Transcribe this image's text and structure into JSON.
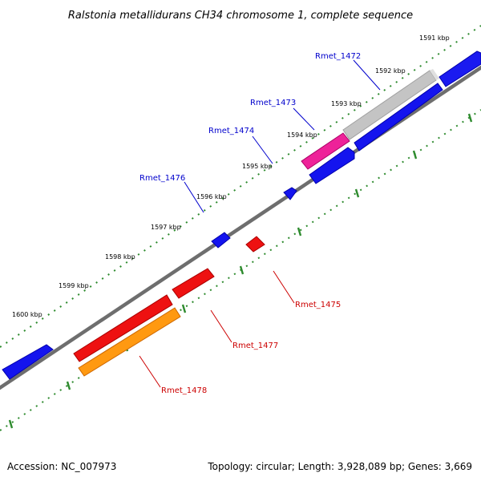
{
  "title": "Ralstonia metallidurans CH34 chromosome 1, complete sequence",
  "footer": {
    "accession": "Accession: NC_007973",
    "summary": "Topology: circular; Length: 3,928,089 bp; Genes: 3,669"
  },
  "ticks": [
    {
      "label": "1591 kbp"
    },
    {
      "label": "1592 kbp"
    },
    {
      "label": "1593 kbp"
    },
    {
      "label": "1594 kbp"
    },
    {
      "label": "1595 kbp"
    },
    {
      "label": "1596 kbp"
    },
    {
      "label": "1597 kbp"
    },
    {
      "label": "1598 kbp"
    },
    {
      "label": "1599 kbp"
    },
    {
      "label": "1600 kbp"
    }
  ],
  "gene_labels": [
    {
      "name": "Rmet_1472",
      "strand": "forward",
      "color": "#0000cc"
    },
    {
      "name": "Rmet_1473",
      "strand": "forward",
      "color": "#0000cc"
    },
    {
      "name": "Rmet_1474",
      "strand": "forward",
      "color": "#0000cc"
    },
    {
      "name": "Rmet_1476",
      "strand": "forward",
      "color": "#0000cc"
    },
    {
      "name": "Rmet_1475",
      "strand": "reverse",
      "color": "#cc0000"
    },
    {
      "name": "Rmet_1477",
      "strand": "reverse",
      "color": "#cc0000"
    },
    {
      "name": "Rmet_1478",
      "strand": "reverse",
      "color": "#cc0000"
    }
  ],
  "colors": {
    "forward_cds": "#0000ee",
    "reverse_cds": "#ee0000",
    "grey_feature": "#c8c8c8",
    "pink_feature": "#ee2299",
    "orange_feature": "#ff9900",
    "backbone": "#808080",
    "tick": "#2e8b2e"
  }
}
